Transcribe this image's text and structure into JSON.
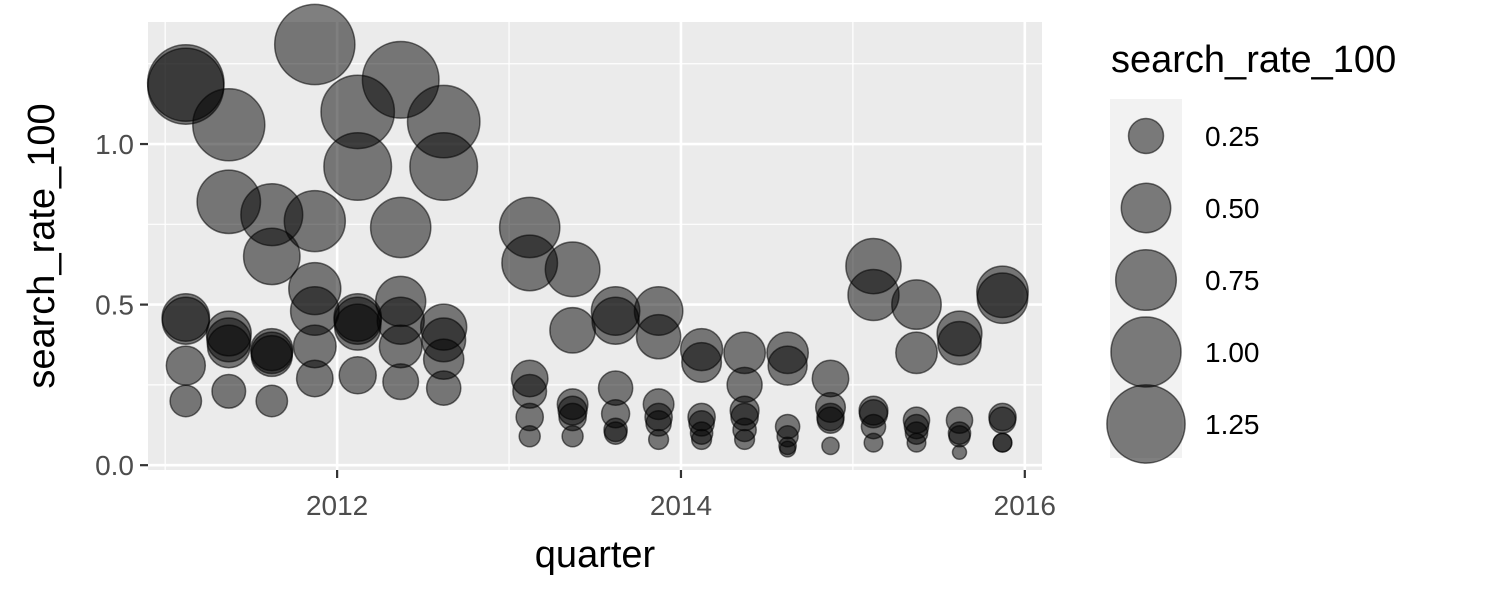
{
  "chart_data": {
    "type": "scatter",
    "xlabel": "quarter",
    "ylabel": "search_rate_100",
    "xlim": [
      2010.9,
      2016.1
    ],
    "ylim": [
      -0.015,
      1.38
    ],
    "x_ticks": [
      2012,
      2014,
      2016
    ],
    "x_tick_labels": [
      "2012",
      "2014",
      "2016"
    ],
    "y_ticks": [
      0.0,
      0.5,
      1.0
    ],
    "y_tick_labels": [
      "0.0",
      "0.5",
      "1.0"
    ],
    "grid": true,
    "point_color": "#000000",
    "point_opacity": 0.5,
    "size_variable": "search_rate_100",
    "legend": {
      "title": "search_rate_100",
      "position": "right",
      "entries": [
        {
          "label": "0.25",
          "value": 0.25
        },
        {
          "label": "0.50",
          "value": 0.5
        },
        {
          "label": "0.75",
          "value": 0.75
        },
        {
          "label": "1.00",
          "value": 1.0
        },
        {
          "label": "1.25",
          "value": 1.25
        }
      ]
    },
    "points": [
      {
        "x": 2011.12,
        "y": 1.19
      },
      {
        "x": 2011.12,
        "y": 1.18
      },
      {
        "x": 2011.12,
        "y": 0.46
      },
      {
        "x": 2011.12,
        "y": 0.45
      },
      {
        "x": 2011.12,
        "y": 0.31
      },
      {
        "x": 2011.12,
        "y": 0.2
      },
      {
        "x": 2011.37,
        "y": 1.06
      },
      {
        "x": 2011.37,
        "y": 0.82
      },
      {
        "x": 2011.37,
        "y": 0.41
      },
      {
        "x": 2011.37,
        "y": 0.39
      },
      {
        "x": 2011.37,
        "y": 0.37
      },
      {
        "x": 2011.37,
        "y": 0.23
      },
      {
        "x": 2011.62,
        "y": 0.78
      },
      {
        "x": 2011.62,
        "y": 0.65
      },
      {
        "x": 2011.62,
        "y": 0.36
      },
      {
        "x": 2011.62,
        "y": 0.35
      },
      {
        "x": 2011.62,
        "y": 0.34
      },
      {
        "x": 2011.62,
        "y": 0.2
      },
      {
        "x": 2011.87,
        "y": 1.31
      },
      {
        "x": 2011.87,
        "y": 0.76
      },
      {
        "x": 2011.87,
        "y": 0.55
      },
      {
        "x": 2011.87,
        "y": 0.48
      },
      {
        "x": 2011.87,
        "y": 0.37
      },
      {
        "x": 2011.87,
        "y": 0.27
      },
      {
        "x": 2012.12,
        "y": 1.1
      },
      {
        "x": 2012.12,
        "y": 0.93
      },
      {
        "x": 2012.12,
        "y": 0.46
      },
      {
        "x": 2012.12,
        "y": 0.45
      },
      {
        "x": 2012.12,
        "y": 0.43
      },
      {
        "x": 2012.12,
        "y": 0.28
      },
      {
        "x": 2012.37,
        "y": 1.2
      },
      {
        "x": 2012.37,
        "y": 0.74
      },
      {
        "x": 2012.37,
        "y": 0.51
      },
      {
        "x": 2012.37,
        "y": 0.45
      },
      {
        "x": 2012.37,
        "y": 0.37
      },
      {
        "x": 2012.37,
        "y": 0.26
      },
      {
        "x": 2012.62,
        "y": 1.07
      },
      {
        "x": 2012.62,
        "y": 0.93
      },
      {
        "x": 2012.62,
        "y": 0.43
      },
      {
        "x": 2012.62,
        "y": 0.39
      },
      {
        "x": 2012.62,
        "y": 0.33
      },
      {
        "x": 2012.62,
        "y": 0.24
      },
      {
        "x": 2013.12,
        "y": 0.74
      },
      {
        "x": 2013.12,
        "y": 0.63
      },
      {
        "x": 2013.12,
        "y": 0.27
      },
      {
        "x": 2013.12,
        "y": 0.23
      },
      {
        "x": 2013.12,
        "y": 0.15
      },
      {
        "x": 2013.12,
        "y": 0.09
      },
      {
        "x": 2013.37,
        "y": 0.61
      },
      {
        "x": 2013.37,
        "y": 0.42
      },
      {
        "x": 2013.37,
        "y": 0.19
      },
      {
        "x": 2013.37,
        "y": 0.17
      },
      {
        "x": 2013.37,
        "y": 0.15
      },
      {
        "x": 2013.37,
        "y": 0.09
      },
      {
        "x": 2013.62,
        "y": 0.48
      },
      {
        "x": 2013.62,
        "y": 0.45
      },
      {
        "x": 2013.62,
        "y": 0.24
      },
      {
        "x": 2013.62,
        "y": 0.16
      },
      {
        "x": 2013.62,
        "y": 0.11
      },
      {
        "x": 2013.62,
        "y": 0.1
      },
      {
        "x": 2013.87,
        "y": 0.48
      },
      {
        "x": 2013.87,
        "y": 0.4
      },
      {
        "x": 2013.87,
        "y": 0.19
      },
      {
        "x": 2013.87,
        "y": 0.15
      },
      {
        "x": 2013.87,
        "y": 0.13
      },
      {
        "x": 2013.87,
        "y": 0.08
      },
      {
        "x": 2014.12,
        "y": 0.36
      },
      {
        "x": 2014.12,
        "y": 0.32
      },
      {
        "x": 2014.12,
        "y": 0.15
      },
      {
        "x": 2014.12,
        "y": 0.13
      },
      {
        "x": 2014.12,
        "y": 0.1
      },
      {
        "x": 2014.12,
        "y": 0.08
      },
      {
        "x": 2014.37,
        "y": 0.35
      },
      {
        "x": 2014.37,
        "y": 0.25
      },
      {
        "x": 2014.37,
        "y": 0.17
      },
      {
        "x": 2014.37,
        "y": 0.15
      },
      {
        "x": 2014.37,
        "y": 0.11
      },
      {
        "x": 2014.37,
        "y": 0.08
      },
      {
        "x": 2014.62,
        "y": 0.35
      },
      {
        "x": 2014.62,
        "y": 0.31
      },
      {
        "x": 2014.62,
        "y": 0.12
      },
      {
        "x": 2014.62,
        "y": 0.09
      },
      {
        "x": 2014.62,
        "y": 0.06
      },
      {
        "x": 2014.62,
        "y": 0.05
      },
      {
        "x": 2014.87,
        "y": 0.27
      },
      {
        "x": 2014.87,
        "y": 0.18
      },
      {
        "x": 2014.87,
        "y": 0.15
      },
      {
        "x": 2014.87,
        "y": 0.14
      },
      {
        "x": 2014.87,
        "y": 0.06
      },
      {
        "x": 2015.12,
        "y": 0.62
      },
      {
        "x": 2015.12,
        "y": 0.53
      },
      {
        "x": 2015.12,
        "y": 0.17
      },
      {
        "x": 2015.12,
        "y": 0.16
      },
      {
        "x": 2015.12,
        "y": 0.12
      },
      {
        "x": 2015.12,
        "y": 0.07
      },
      {
        "x": 2015.37,
        "y": 0.5
      },
      {
        "x": 2015.37,
        "y": 0.35
      },
      {
        "x": 2015.37,
        "y": 0.14
      },
      {
        "x": 2015.37,
        "y": 0.12
      },
      {
        "x": 2015.37,
        "y": 0.1
      },
      {
        "x": 2015.37,
        "y": 0.07
      },
      {
        "x": 2015.62,
        "y": 0.41
      },
      {
        "x": 2015.62,
        "y": 0.38
      },
      {
        "x": 2015.62,
        "y": 0.14
      },
      {
        "x": 2015.62,
        "y": 0.1
      },
      {
        "x": 2015.62,
        "y": 0.09
      },
      {
        "x": 2015.62,
        "y": 0.04
      },
      {
        "x": 2015.87,
        "y": 0.54
      },
      {
        "x": 2015.87,
        "y": 0.52
      },
      {
        "x": 2015.87,
        "y": 0.15
      },
      {
        "x": 2015.87,
        "y": 0.14
      },
      {
        "x": 2015.87,
        "y": 0.07
      },
      {
        "x": 2015.87,
        "y": 0.07
      }
    ]
  }
}
